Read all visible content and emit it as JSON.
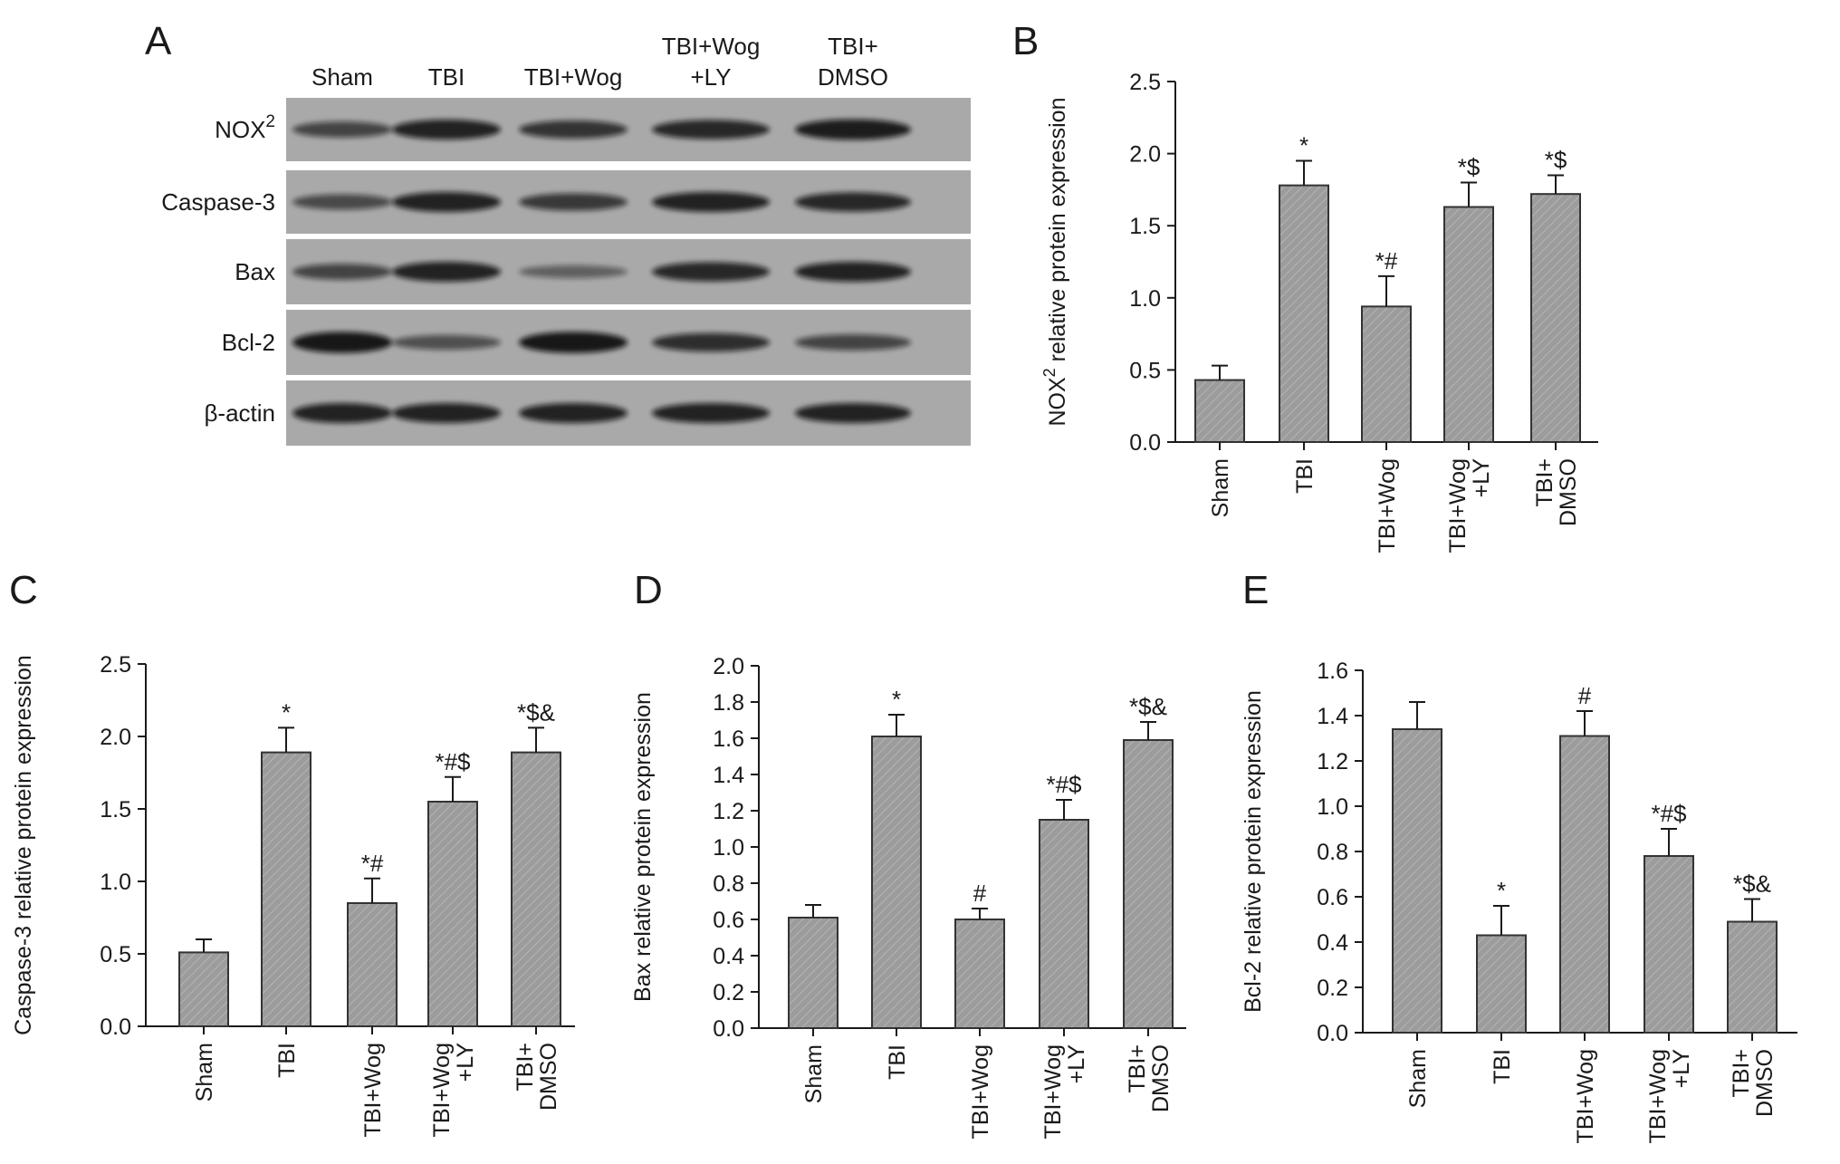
{
  "colors": {
    "bar_fill": "#9c9c9c",
    "blot_bg": "#a9a9a9",
    "band": "#111111"
  },
  "panels": {
    "A": "A",
    "B": "B",
    "C": "C",
    "D": "D",
    "E": "E"
  },
  "blot": {
    "lanes": [
      {
        "line1": "Sham",
        "line2": ""
      },
      {
        "line1": "TBI",
        "line2": ""
      },
      {
        "line1": "TBI+Wog",
        "line2": ""
      },
      {
        "line1": "TBI+Wog",
        "line2": "+LY"
      },
      {
        "line1": "TBI+",
        "line2": "DMSO"
      }
    ],
    "rows": [
      {
        "label": "NOX",
        "sup": "2",
        "intensity": [
          0.55,
          0.85,
          0.7,
          0.8,
          0.9
        ]
      },
      {
        "label": "Caspase-3",
        "sup": "",
        "intensity": [
          0.5,
          0.85,
          0.65,
          0.85,
          0.8
        ]
      },
      {
        "label": "Bax",
        "sup": "",
        "intensity": [
          0.55,
          0.85,
          0.3,
          0.8,
          0.85
        ]
      },
      {
        "label": "Bcl-2",
        "sup": "",
        "intensity": [
          0.95,
          0.45,
          0.95,
          0.75,
          0.55
        ]
      },
      {
        "label": "β-actin",
        "sup": "",
        "intensity": [
          0.85,
          0.85,
          0.85,
          0.85,
          0.85
        ]
      }
    ]
  },
  "chart_data": [
    {
      "panel": "B",
      "type": "bar",
      "categories": [
        "Sham",
        "TBI",
        "TBI+Wog",
        "TBI+Wog\n+LY",
        "TBI+\nDMSO"
      ],
      "values": [
        0.43,
        1.78,
        0.94,
        1.63,
        1.72
      ],
      "errors": [
        0.1,
        0.17,
        0.21,
        0.17,
        0.13
      ],
      "annotations": [
        "",
        "*",
        "*#",
        "*$",
        "*$"
      ],
      "ylabel": "NOX",
      "ylabel_sup": "2",
      "ylabel_rest": " relative protein expression",
      "ylim": [
        0,
        2.5
      ],
      "yticks": [
        "0.0",
        "0.5",
        "1.0",
        "1.5",
        "2.0",
        "2.5"
      ]
    },
    {
      "panel": "C",
      "type": "bar",
      "categories": [
        "Sham",
        "TBI",
        "TBI+Wog",
        "TBI+Wog\n+LY",
        "TBI+\nDMSO"
      ],
      "values": [
        0.51,
        1.89,
        0.85,
        1.55,
        1.89
      ],
      "errors": [
        0.09,
        0.17,
        0.17,
        0.17,
        0.17
      ],
      "annotations": [
        "",
        "*",
        "*#",
        "*#$",
        "*$&"
      ],
      "ylabel": "Caspase-3 relative protein expression",
      "ylabel_sup": "",
      "ylabel_rest": "",
      "ylim": [
        0,
        2.5
      ],
      "yticks": [
        "0.0",
        "0.5",
        "1.0",
        "1.5",
        "2.0",
        "2.5"
      ]
    },
    {
      "panel": "D",
      "type": "bar",
      "categories": [
        "Sham",
        "TBI",
        "TBI+Wog",
        "TBI+Wog\n+LY",
        "TBI+\nDMSO"
      ],
      "values": [
        0.61,
        1.61,
        0.6,
        1.15,
        1.59
      ],
      "errors": [
        0.07,
        0.12,
        0.06,
        0.11,
        0.1
      ],
      "annotations": [
        "",
        "*",
        "#",
        "*#$",
        "*$&"
      ],
      "ylabel": "Bax relative protein expression",
      "ylabel_sup": "",
      "ylabel_rest": "",
      "ylim": [
        0,
        2.0
      ],
      "yticks": [
        "0.0",
        "0.2",
        "0.4",
        "0.6",
        "0.8",
        "1.0",
        "1.2",
        "1.4",
        "1.6",
        "1.8",
        "2.0"
      ]
    },
    {
      "panel": "E",
      "type": "bar",
      "categories": [
        "Sham",
        "TBI",
        "TBI+Wog",
        "TBI+Wog\n+LY",
        "TBI+\nDMSO"
      ],
      "values": [
        1.34,
        0.43,
        1.31,
        0.78,
        0.49
      ],
      "errors": [
        0.12,
        0.13,
        0.11,
        0.12,
        0.1
      ],
      "annotations": [
        "",
        "*",
        "#",
        "*#$",
        "*$&"
      ],
      "ylabel": "Bcl-2 relative protein expression",
      "ylabel_sup": "",
      "ylabel_rest": "",
      "ylim": [
        0,
        1.6
      ],
      "yticks": [
        "0.0",
        "0.2",
        "0.4",
        "0.6",
        "0.8",
        "1.0",
        "1.2",
        "1.4",
        "1.6"
      ]
    }
  ]
}
